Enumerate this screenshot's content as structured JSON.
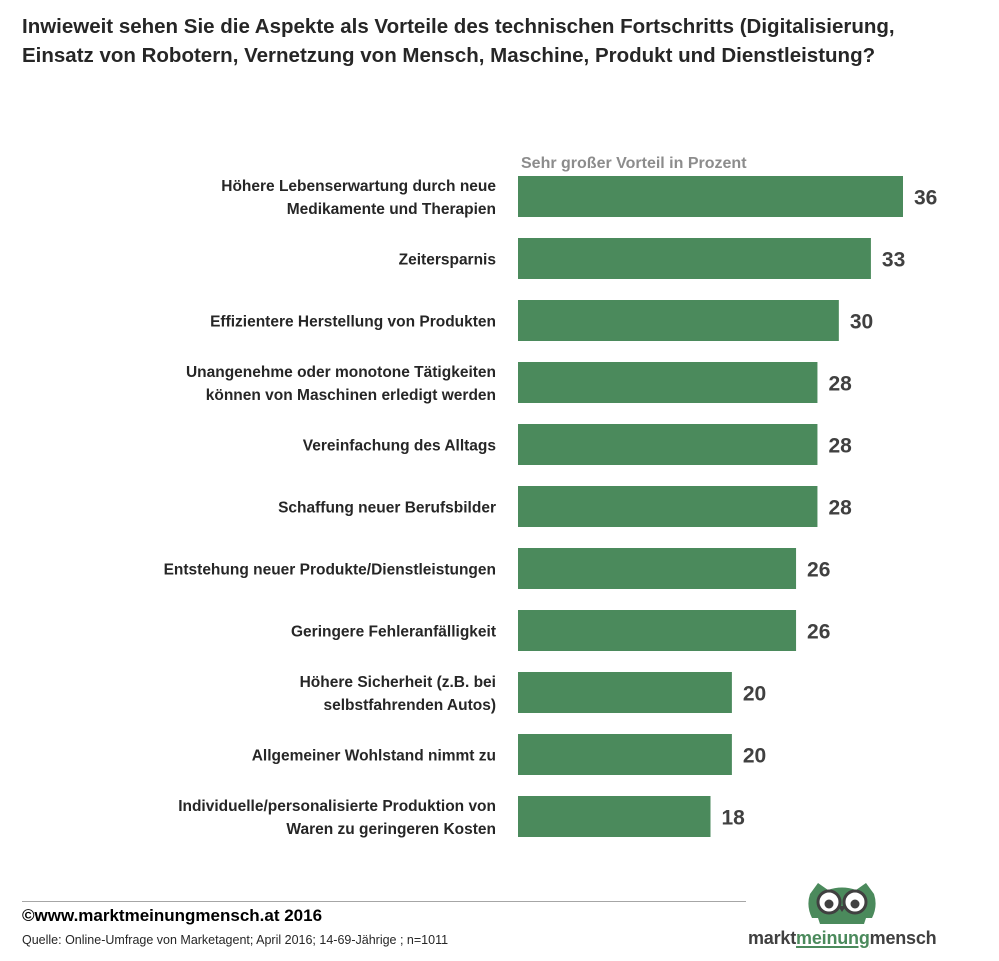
{
  "title_lines": [
    "Inwieweit sehen Sie die Aspekte als Vorteile des technischen Fortschritts (Digitalisierung,",
    "Einsatz von Robotern, Vernetzung von Mensch, Maschine, Produkt und Dienstleistung?"
  ],
  "colors": {
    "bar": "#4b8a5c",
    "text": "#262626",
    "muted": "#8c8c8c"
  },
  "chart_data": {
    "type": "bar",
    "orientation": "horizontal",
    "series": [
      {
        "name": "Sehr großer Vorteil in Prozent",
        "values": [
          36,
          33,
          30,
          28,
          28,
          28,
          26,
          26,
          20,
          20,
          18
        ]
      }
    ],
    "categories": [
      [
        "Höhere Lebenserwartung durch neue",
        "Medikamente und Therapien"
      ],
      [
        "Zeitersparnis"
      ],
      [
        "Effizientere Herstellung von Produkten"
      ],
      [
        "Unangenehme oder monotone Tätigkeiten",
        "können von Maschinen erledigt werden"
      ],
      [
        "Vereinfachung des Alltags"
      ],
      [
        "Schaffung neuer Berufsbilder"
      ],
      [
        "Entstehung neuer Produkte/Dienstleistungen"
      ],
      [
        "Geringere Fehleranfälligkeit"
      ],
      [
        "Höhere Sicherheit (z.B. bei",
        "selbstfahrenden Autos)"
      ],
      [
        "Allgemeiner Wohlstand nimmt zu"
      ],
      [
        "Individuelle/personalisierte Produktion von",
        "Waren zu geringeren Kosten"
      ]
    ],
    "data_labels": [
      "36",
      "33",
      "30",
      "28",
      "28",
      "28",
      "26",
      "26",
      "20",
      "20",
      "18"
    ],
    "xlim": [
      0,
      36
    ],
    "grid": false,
    "legend": "none"
  },
  "footer": {
    "copyright": "©www.marktmeinungmensch.at 2016",
    "source": "Quelle: Online-Umfrage von Marketagent; April 2016; 14-69-Jährige ; n=1011"
  },
  "logo": {
    "icon": "owl-icon",
    "brand_part1": "markt",
    "brand_part2": "meinung",
    "brand_part3": "mensch"
  }
}
